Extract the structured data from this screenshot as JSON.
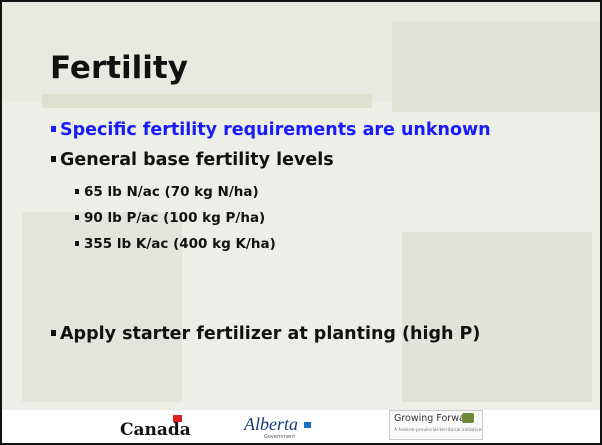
{
  "title": "Fertility",
  "bullets": [
    {
      "text": "Specific fertility requirements are unknown",
      "level": 1,
      "color": "blue"
    },
    {
      "text": "General base fertility levels",
      "level": 1
    },
    {
      "text": "65 lb N/ac (70 kg N/ha)",
      "level": 2
    },
    {
      "text": "90 lb P/ac (100 kg P/ha)",
      "level": 2
    },
    {
      "text": "355 lb K/ac (400 kg K/ha)",
      "level": 2
    },
    {
      "text": "Apply starter fertilizer at planting (high P)",
      "level": 1
    }
  ],
  "footer": {
    "canada": "Canada",
    "alberta": "Alberta",
    "alberta_sub": "Government",
    "growing_forward": "Growing Forward",
    "growing_forward_sub": "A federal-provincial-territorial initiative"
  }
}
